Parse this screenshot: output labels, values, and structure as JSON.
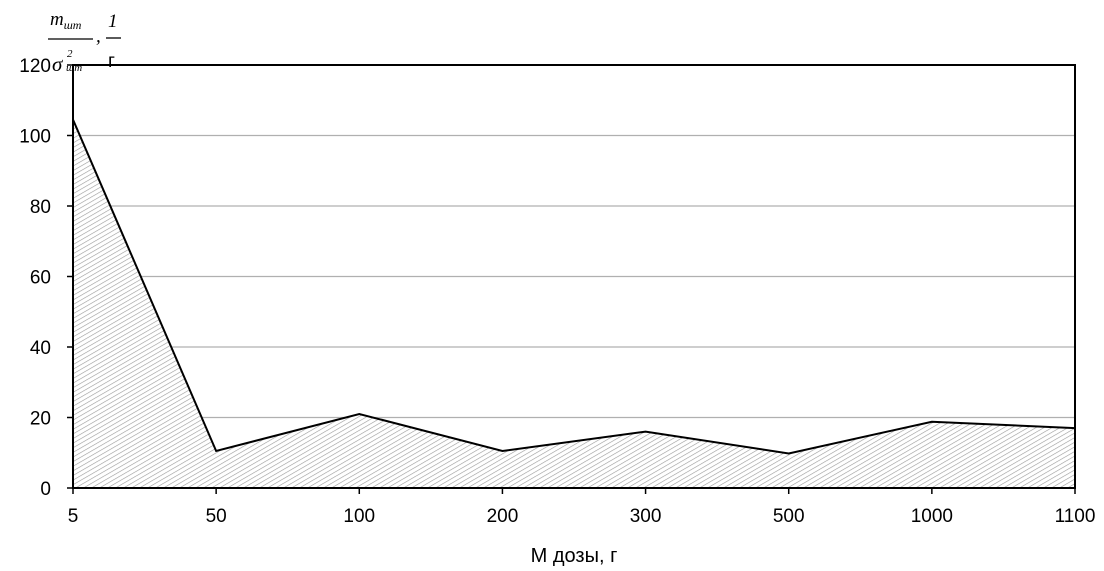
{
  "chart_data": {
    "type": "area",
    "categories": [
      "5",
      "50",
      "100",
      "200",
      "300",
      "500",
      "1000",
      "1100"
    ],
    "values": [
      104.5,
      10.5,
      21,
      10.5,
      16,
      9.8,
      18.8,
      17
    ],
    "title": "",
    "xlabel": "М дозы, г",
    "ylabel": {
      "numerator": "m",
      "numerator_sub": "шт",
      "denominator": "σ",
      "denominator_sup": "2",
      "denominator_sub": "шт",
      "separator": ",",
      "unit_numerator": "1",
      "unit_denominator": "г"
    },
    "ylim": [
      0,
      120
    ],
    "yticks": [
      0,
      20,
      40,
      60,
      80,
      100,
      120
    ],
    "grid": true,
    "fill": "hatched",
    "colors": {
      "line": "#000000",
      "grid": "#b0b0b0",
      "hatch": "#9a9a9a"
    }
  }
}
